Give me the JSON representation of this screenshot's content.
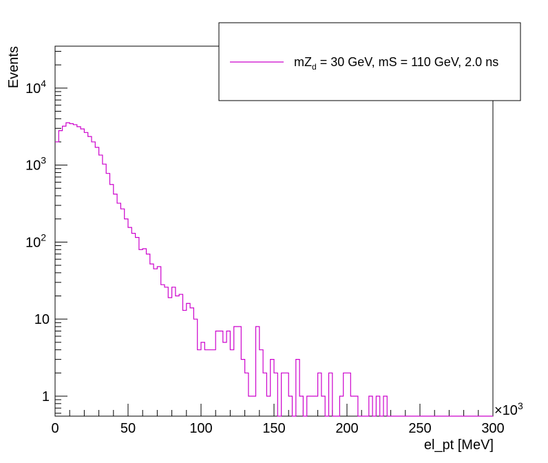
{
  "chart_data": {
    "type": "histogram",
    "xlabel": "el_pt [MeV]",
    "ylabel": "Events",
    "x_multiplier_label": "×10",
    "x_multiplier_exp": "3",
    "xlim": [
      0,
      300
    ],
    "ylim": [
      0.55,
      35000
    ],
    "log_y": true,
    "grid": false,
    "legend_position": "top-right",
    "x_ticks": [
      {
        "value": 0,
        "label": "0"
      },
      {
        "value": 50,
        "label": "50"
      },
      {
        "value": 100,
        "label": "100"
      },
      {
        "value": 150,
        "label": "150"
      },
      {
        "value": 200,
        "label": "200"
      },
      {
        "value": 250,
        "label": "250"
      },
      {
        "value": 300,
        "label": "300"
      }
    ],
    "y_ticks": [
      {
        "value": 1,
        "base": "1",
        "exp": ""
      },
      {
        "value": 10,
        "base": "10",
        "exp": ""
      },
      {
        "value": 100,
        "base": "10",
        "exp": "2"
      },
      {
        "value": 1000,
        "base": "10",
        "exp": "3"
      },
      {
        "value": 10000,
        "base": "10",
        "exp": "4"
      }
    ],
    "bin_width": 2.5,
    "series": [
      {
        "name": "mZ_d = 30 GeV, mS = 110 GeV, 2.0 ns",
        "name_parts": {
          "pre": "mZ",
          "sub": "d",
          "post": " = 30 GeV, mS = 110 GeV, 2.0 ns"
        },
        "color": "#cc00cc",
        "bin_edges_start": 0,
        "values": [
          2000,
          2800,
          3200,
          3550,
          3450,
          3350,
          3150,
          2950,
          2650,
          2350,
          2000,
          1700,
          1350,
          1030,
          780,
          560,
          420,
          320,
          270,
          200,
          155,
          130,
          115,
          80,
          82,
          70,
          52,
          45,
          48,
          28,
          26,
          19,
          26,
          20,
          21,
          13,
          16,
          14,
          10,
          4,
          5,
          4,
          4,
          4,
          7,
          7,
          5,
          7,
          4,
          8,
          8,
          3,
          2,
          1,
          1,
          8,
          4,
          2,
          1,
          3,
          2,
          0,
          2,
          2,
          1,
          0,
          3,
          1,
          0,
          1,
          1,
          1,
          2,
          1,
          0,
          2,
          0,
          0,
          1,
          2,
          2,
          1,
          1,
          0,
          0,
          0,
          1,
          0,
          1,
          0,
          1,
          0,
          0,
          0,
          0,
          0,
          0,
          0,
          0,
          0,
          0,
          0,
          0,
          0,
          0,
          0,
          0,
          0,
          0,
          0,
          0,
          0,
          0,
          0,
          0,
          0,
          0,
          0,
          0,
          0
        ]
      }
    ]
  }
}
